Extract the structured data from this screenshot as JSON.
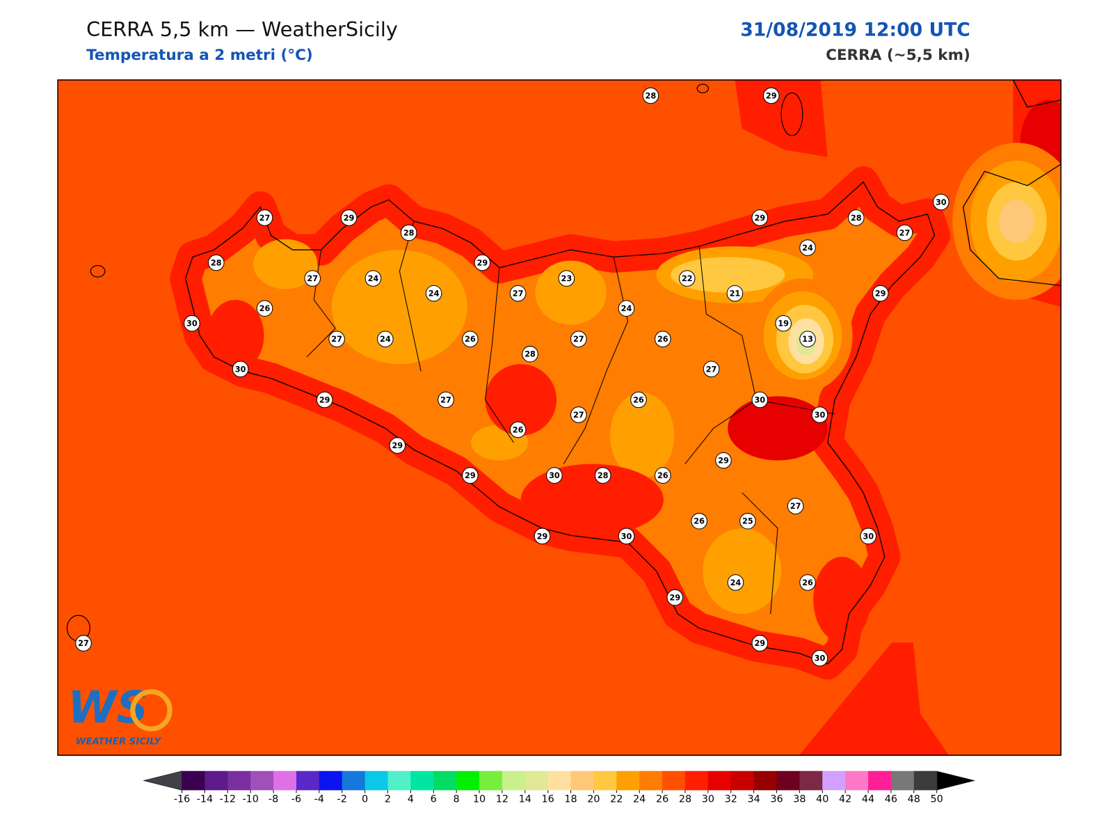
{
  "header": {
    "title": "CERRA 5,5 km — WeatherSicily",
    "subtitle": "Temperatura a 2 metri (°C)",
    "date": "31/08/2019 12:00 UTC",
    "model": "CERRA (~5,5 km)"
  },
  "stations": [
    28,
    29,
    27,
    29,
    28,
    28,
    27,
    24,
    24,
    29,
    27,
    23,
    22,
    21,
    29,
    28,
    27,
    30,
    24,
    29,
    26,
    30,
    27,
    24,
    26,
    24,
    27,
    26,
    19,
    13,
    28,
    30,
    27,
    29,
    27,
    26,
    30,
    30,
    27,
    26,
    29,
    29,
    29,
    30,
    28,
    26,
    27,
    26,
    25,
    30,
    29,
    30,
    29,
    24,
    26,
    29,
    30,
    27
  ],
  "colorbar": {
    "ticks": [
      -16,
      -14,
      -12,
      -10,
      -8,
      -6,
      -4,
      -2,
      0,
      2,
      4,
      6,
      8,
      10,
      12,
      14,
      16,
      18,
      20,
      22,
      24,
      26,
      28,
      30,
      32,
      34,
      36,
      38,
      40,
      42,
      44,
      46,
      48,
      50
    ],
    "colors": [
      "#3d0050",
      "#5c1a8a",
      "#7b2ea0",
      "#a050b8",
      "#e070e8",
      "#5a28c8",
      "#0a14f0",
      "#1478dc",
      "#0ac8e6",
      "#50f0c8",
      "#00e6a0",
      "#00dc64",
      "#00f000",
      "#78ee3c",
      "#c8f08c",
      "#e0e896",
      "#ffe0a0",
      "#ffc878",
      "#ffc840",
      "#ffa000",
      "#ff7d00",
      "#ff5000",
      "#ff1e00",
      "#e60000",
      "#c80000",
      "#960000",
      "#6e0020",
      "#7d2846",
      "#d2a0ff",
      "#ff78c8",
      "#ff1e96",
      "#787878",
      "#3c3c3c"
    ],
    "under_color": "#404048",
    "over_color": "#000000"
  },
  "logo": {
    "letters": "WS",
    "text": "WEATHER SICILY"
  }
}
